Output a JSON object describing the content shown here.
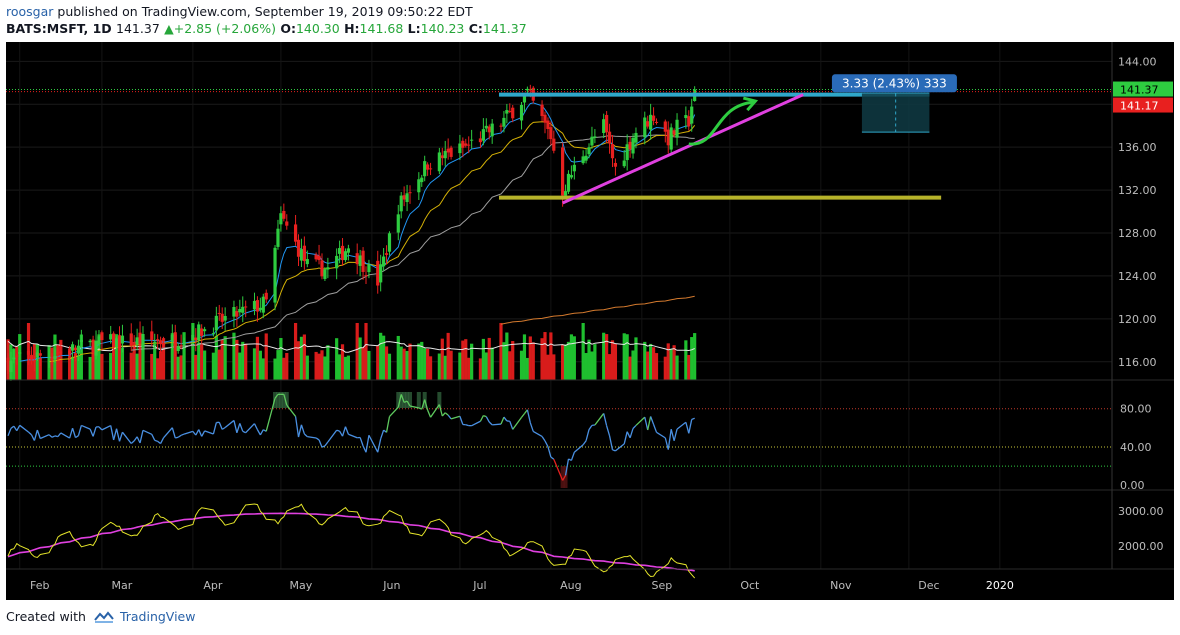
{
  "header": {
    "author": "roosgar",
    "published_text": "published on TradingView.com, September 19, 2019 09:50:22 EDT",
    "symbol": "BATS:MSFT, 1D",
    "last": "141.37",
    "change": "▲+2.85 (+2.06%)",
    "o_label": "O:",
    "o": "140.30",
    "h_label": "H:",
    "h": "141.68",
    "l_label": "L:",
    "l": "140.23",
    "c_label": "C:",
    "c": "141.37"
  },
  "footer": {
    "created_with": "Created with",
    "brand": "TradingView"
  },
  "colors": {
    "background": "#000000",
    "up": "#2ecc40",
    "down": "#e8201f",
    "ema_fast": "#2196f3",
    "ema_mid": "#d4b106",
    "sma_slow": "#9e9e9e",
    "sma_long": "#d47a2e",
    "resistance_line": "#2fa7c9",
    "support_line": "#b7b32a",
    "trendline": "#e040e0",
    "arrow": "#2ecc40",
    "rsi": "#4a90e2",
    "osc_fast": "#e3e32a",
    "osc_slow": "#e040e0"
  },
  "chart_data": {
    "type": "candlestick",
    "title": "",
    "x_ticks": [
      "Feb",
      "Mar",
      "Apr",
      "May",
      "Jun",
      "Jul",
      "Aug",
      "Sep",
      "Oct",
      "Nov",
      "Dec",
      "2020"
    ],
    "price_axis": {
      "ticks": [
        "144.00",
        "140.00",
        "136.00",
        "132.00",
        "128.00",
        "124.00",
        "120.00",
        "116.00"
      ],
      "ylim": [
        114.3,
        145.8
      ],
      "last_price_label": "141.37",
      "red_price_label": "141.17"
    },
    "close_series": [
      {
        "x": "Jan 28",
        "y": 116.0
      },
      {
        "x": "Feb 15",
        "y": 116.9
      },
      {
        "x": "Mar 1",
        "y": 117.8
      },
      {
        "x": "Mar 25",
        "y": 118.0
      },
      {
        "x": "Apr 3",
        "y": 118.8
      },
      {
        "x": "Apr 12",
        "y": 120.0
      },
      {
        "x": "Apr 26",
        "y": 121.5
      },
      {
        "x": "May 1",
        "y": 129.5
      },
      {
        "x": "May 10",
        "y": 125.0
      },
      {
        "x": "May 17",
        "y": 124.6
      },
      {
        "x": "May 24",
        "y": 126.8
      },
      {
        "x": "Jun 3",
        "y": 123.5
      },
      {
        "x": "Jun 10",
        "y": 130.5
      },
      {
        "x": "Jun 20",
        "y": 134.5
      },
      {
        "x": "Jul 3",
        "y": 136.0
      },
      {
        "x": "Jul 15",
        "y": 138.2
      },
      {
        "x": "Jul 24",
        "y": 141.0
      },
      {
        "x": "Aug 1",
        "y": 137.0
      },
      {
        "x": "Aug 5",
        "y": 132.0
      },
      {
        "x": "Aug 12",
        "y": 135.5
      },
      {
        "x": "Aug 19",
        "y": 138.0
      },
      {
        "x": "Aug 23",
        "y": 134.0
      },
      {
        "x": "Aug 30",
        "y": 137.5
      },
      {
        "x": "Sep 5",
        "y": 139.0
      },
      {
        "x": "Sep 10",
        "y": 136.8
      },
      {
        "x": "Sep 13",
        "y": 137.8
      },
      {
        "x": "Sep 17",
        "y": 138.5
      },
      {
        "x": "Sep 19",
        "y": 141.37
      }
    ],
    "annotations": {
      "measure_label": "3.33 (2.43%) 333",
      "resistance_level": 140.9,
      "support_level": 131.3,
      "trendline": [
        {
          "x": "Aug 5",
          "y": 130.8
        },
        {
          "x": "Oct 26",
          "y": 140.9
        }
      ]
    },
    "rsi_panel": {
      "ticks": [
        "80.00",
        "40.00",
        "0.00"
      ],
      "ylim": [
        -5,
        110
      ],
      "overbought": 80,
      "midline": 40,
      "oversold": 20,
      "last": 70
    },
    "osc_panel": {
      "ticks": [
        "3000.00",
        "2000.00"
      ],
      "ylim": [
        1350,
        3600
      ]
    }
  }
}
